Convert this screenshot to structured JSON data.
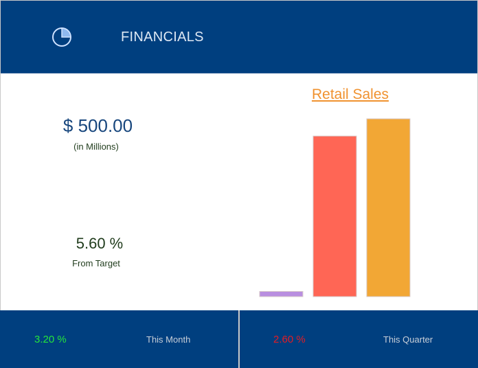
{
  "header": {
    "title": "FINANCIALS",
    "icon": "pie-chart-icon"
  },
  "metrics": {
    "amount": "$ 500.00",
    "amount_unit": "(in Millions)",
    "percent": "5.60 %",
    "percent_label": "From Target"
  },
  "chart_data": {
    "type": "bar",
    "title": "Retail Sales",
    "categories": [
      "",
      "",
      ""
    ],
    "values": [
      3,
      93,
      103
    ],
    "colors": [
      "#b98ee0",
      "#ff6655",
      "#f2a735"
    ],
    "xlabel": "",
    "ylabel": "",
    "ylim": [
      0,
      105
    ],
    "grid": false,
    "legend": "none"
  },
  "footer": {
    "month": {
      "value": "3.20 %",
      "label": "This Month",
      "color": "#24e63b"
    },
    "quarter": {
      "value": "2.60 %",
      "label": "This Quarter",
      "color": "#e51c23"
    }
  },
  "colors": {
    "primary": "#003f7f",
    "accent": "#f0922f"
  }
}
